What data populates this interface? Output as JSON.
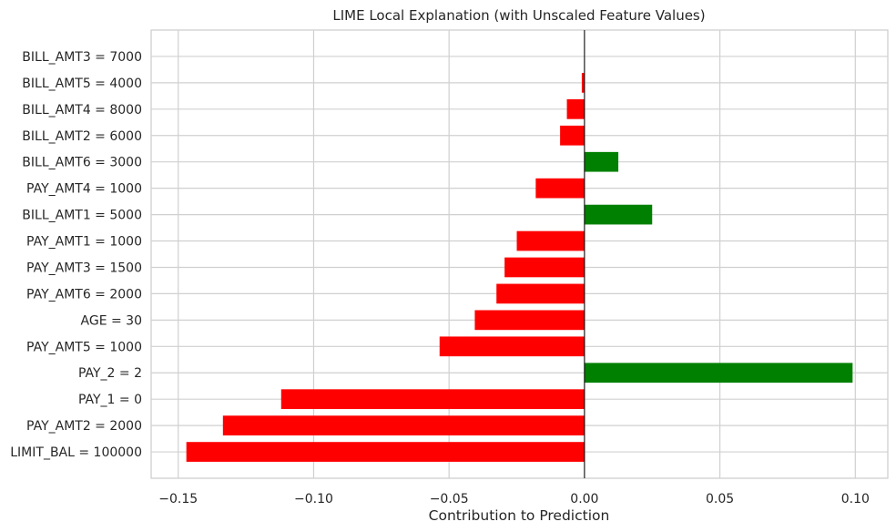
{
  "chart_data": {
    "type": "bar",
    "orientation": "horizontal",
    "title": "LIME Local Explanation (with Unscaled Feature Values)",
    "xlabel": "Contribution to Prediction",
    "ylabel": "",
    "xlim": [
      -0.16,
      0.112
    ],
    "xticks": [
      -0.15,
      -0.1,
      -0.05,
      0.0,
      0.05,
      0.1
    ],
    "xtick_labels": [
      "−0.15",
      "−0.10",
      "−0.05",
      "0.00",
      "0.05",
      "0.10"
    ],
    "grid": true,
    "zero_line": true,
    "positive_color": "#008000",
    "negative_color": "#ff0000",
    "categories": [
      "BILL_AMT3 = 7000",
      "BILL_AMT5 = 4000",
      "BILL_AMT4 = 8000",
      "BILL_AMT2 = 6000",
      "BILL_AMT6 = 3000",
      "PAY_AMT4 = 1000",
      "BILL_AMT1 = 5000",
      "PAY_AMT1 = 1000",
      "PAY_AMT3 = 1500",
      "PAY_AMT6 = 2000",
      "AGE = 30",
      "PAY_AMT5 = 1000",
      "PAY_2 = 2",
      "PAY_1 = 0",
      "PAY_AMT2 = 2000",
      "LIMIT_BAL = 100000"
    ],
    "values": [
      0.0,
      -0.001,
      -0.0065,
      -0.009,
      0.0125,
      -0.018,
      0.025,
      -0.025,
      -0.0295,
      -0.0325,
      -0.0405,
      -0.0535,
      0.099,
      -0.112,
      -0.1335,
      -0.147
    ]
  }
}
